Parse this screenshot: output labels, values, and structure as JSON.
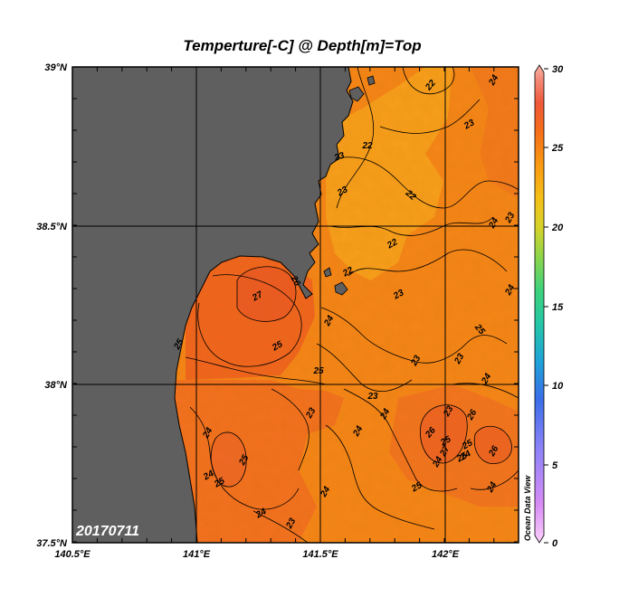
{
  "title": "Temperture[-C] @ Depth[m]=Top",
  "date_stamp": "20170711",
  "watermark": "Ocean Data View",
  "axes": {
    "x_ticks": [
      "140.5°E",
      "141°E",
      "141.5°E",
      "142°E"
    ],
    "y_ticks": [
      "39°N",
      "38.5°N",
      "38°N",
      "37.5°N"
    ]
  },
  "colorbar": {
    "ticks": [
      "30",
      "25",
      "20",
      "15",
      "10",
      "5",
      "0"
    ],
    "colors": [
      "#fbb6fb",
      "#d88cf5",
      "#8a82f7",
      "#3a6ee8",
      "#1fa3d8",
      "#25c7a6",
      "#3fd27a",
      "#8fd54a",
      "#c9d12e",
      "#f1c318",
      "#f9a012",
      "#f57a14",
      "#ef5a30",
      "#f17a6a",
      "#f8b0a0"
    ]
  },
  "colors": {
    "land": "#5f5f5f",
    "sea_warm": "#f26a22",
    "sea_mid": "#f58a18",
    "sea_cool": "#f7a21a"
  },
  "contour_labels": [
    "22",
    "24",
    "23",
    "22",
    "23",
    "22",
    "23",
    "22",
    "24",
    "23",
    "22",
    "23",
    "24",
    "25",
    "27",
    "26",
    "24",
    "25",
    "25",
    "23",
    "23",
    "23",
    "25",
    "24",
    "23",
    "24",
    "24",
    "25",
    "24",
    "26",
    "24",
    "25",
    "25",
    "23",
    "24",
    "24",
    "23",
    "25",
    "24",
    "26",
    "24",
    "26",
    "25",
    "24",
    "27",
    "25"
  ]
}
